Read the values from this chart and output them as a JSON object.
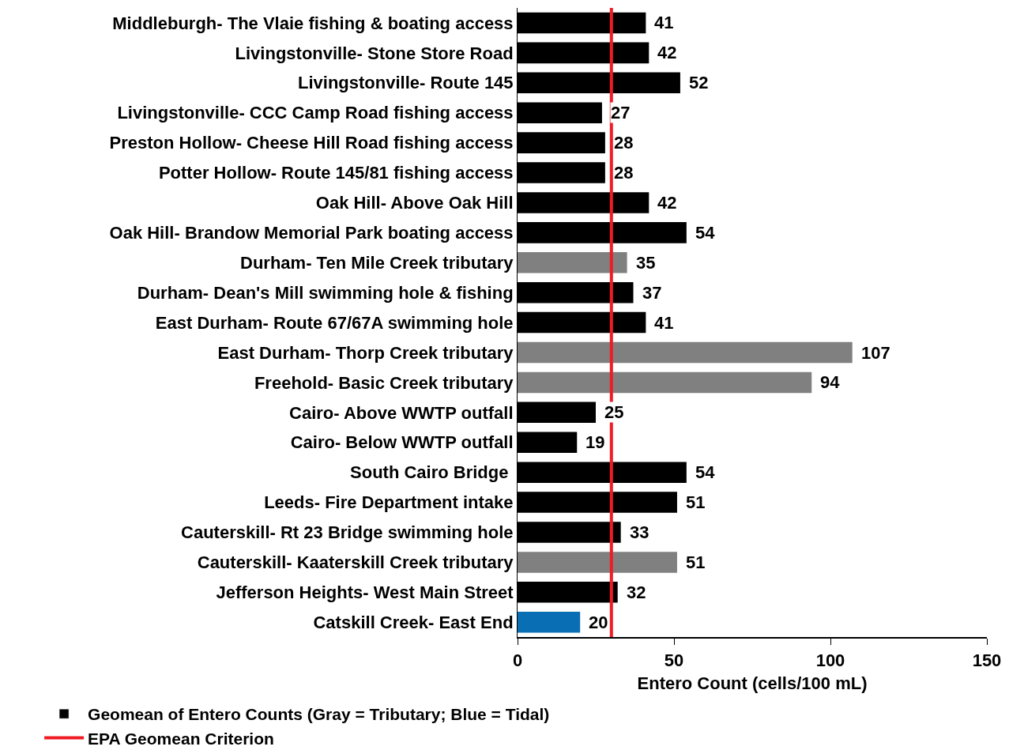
{
  "chart_data": {
    "type": "bar",
    "orientation": "horizontal",
    "xlabel": "Entero Count (cells/100 mL)",
    "categories": [
      "Middleburgh- The Vlaie fishing & boating access",
      "Livingstonville- Stone Store Road",
      "Livingstonville- Route 145",
      "Livingstonville- CCC Camp Road fishing access",
      "Preston Hollow- Cheese Hill Road fishing access",
      "Potter Hollow- Route 145/81 fishing access",
      "Oak Hill- Above Oak Hill",
      "Oak Hill- Brandow Memorial Park boating access",
      "Durham- Ten Mile Creek tributary",
      "Durham- Dean's Mill swimming hole & fishing",
      "East Durham- Route 67/67A swimming hole",
      "East Durham- Thorp Creek tributary",
      "Freehold- Basic Creek tributary",
      "Cairo- Above WWTP outfall",
      "Cairo- Below WWTP outfall",
      "South Cairo Bridge ",
      "Leeds- Fire Department intake",
      "Cauterskill- Rt 23 Bridge swimming hole",
      "Cauterskill- Kaaterskill Creek tributary",
      "Jefferson Heights- West Main Street",
      "Catskill Creek- East End"
    ],
    "series": [
      {
        "name": "Geomean of Entero Counts (Gray = Tributary; Blue = Tidal)",
        "color": "#000000",
        "values": [
          41,
          42,
          52,
          27,
          28,
          28,
          42,
          54,
          35,
          37,
          41,
          107,
          94,
          25,
          19,
          54,
          51,
          33,
          51,
          32,
          20
        ],
        "colors": [
          "#000000",
          "#000000",
          "#000000",
          "#000000",
          "#000000",
          "#000000",
          "#000000",
          "#000000",
          "#808080",
          "#000000",
          "#000000",
          "#808080",
          "#808080",
          "#000000",
          "#000000",
          "#000000",
          "#000000",
          "#000000",
          "#808080",
          "#000000",
          "#0a6eb4"
        ]
      }
    ],
    "data_labels": true,
    "xlim": [
      0,
      150
    ],
    "xticks": [
      0,
      50,
      100,
      150
    ],
    "ref_lines": [
      {
        "axis": "x",
        "value": 30,
        "label": "EPA Geomean Criterion",
        "color": "#ee1c25"
      }
    ],
    "legend": "bottom"
  }
}
